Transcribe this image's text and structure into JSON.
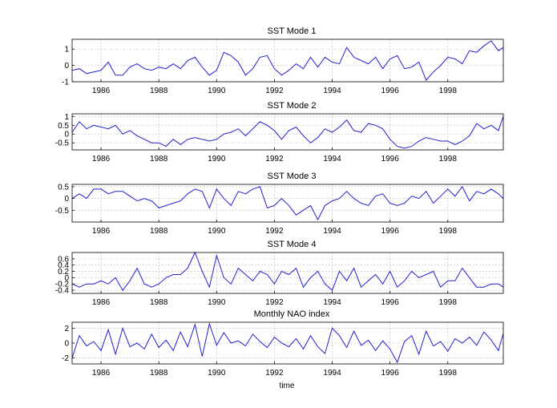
{
  "figure": {
    "xlabel": "time"
  },
  "chart_data": [
    {
      "type": "line",
      "title": "SST Mode 1",
      "xlim": [
        1985.0,
        1999.92
      ],
      "ylim": [
        -1,
        1.6
      ],
      "xticks": [
        1986,
        1988,
        1990,
        1992,
        1994,
        1996,
        1998
      ],
      "xtick_labels": [
        "1986",
        "1988",
        "1990",
        "1992",
        "1994",
        "1996",
        "1998"
      ],
      "yticks": [
        -1,
        0,
        1
      ],
      "ytick_labels": [
        "-1",
        "0",
        "1"
      ],
      "grid": true,
      "series": [
        {
          "color": "#2222cc",
          "x": [
            1985.0,
            1985.25,
            1985.5,
            1985.75,
            1986.0,
            1986.25,
            1986.5,
            1986.75,
            1987.0,
            1987.25,
            1987.5,
            1987.75,
            1988.0,
            1988.25,
            1988.5,
            1988.75,
            1989.0,
            1989.25,
            1989.5,
            1989.75,
            1990.0,
            1990.25,
            1990.5,
            1990.75,
            1991.0,
            1991.25,
            1991.5,
            1991.75,
            1992.0,
            1992.25,
            1992.5,
            1992.75,
            1993.0,
            1993.25,
            1993.5,
            1993.75,
            1994.0,
            1994.25,
            1994.5,
            1994.75,
            1995.0,
            1995.25,
            1995.5,
            1995.75,
            1996.0,
            1996.25,
            1996.5,
            1996.75,
            1997.0,
            1997.25,
            1997.5,
            1997.75,
            1998.0,
            1998.25,
            1998.5,
            1998.75,
            1999.0,
            1999.25,
            1999.5,
            1999.75,
            1999.92
          ],
          "y": [
            -0.3,
            -0.2,
            -0.5,
            -0.4,
            -0.3,
            0.2,
            -0.6,
            -0.6,
            -0.1,
            0.1,
            -0.2,
            -0.3,
            -0.1,
            -0.2,
            0.1,
            -0.2,
            0.3,
            0.5,
            -0.1,
            -0.6,
            -0.3,
            0.8,
            0.6,
            0.2,
            -0.6,
            -0.2,
            0.5,
            0.6,
            -0.2,
            -0.6,
            -0.3,
            0.1,
            -0.2,
            0.5,
            -0.1,
            0.5,
            0.2,
            0.1,
            1.1,
            0.5,
            0.3,
            0.1,
            0.5,
            -0.2,
            0.4,
            0.6,
            -0.2,
            -0.1,
            0.2,
            -0.9,
            -0.4,
            0.0,
            0.5,
            0.4,
            0.1,
            0.9,
            0.8,
            1.2,
            1.5,
            0.9,
            1.1
          ]
        }
      ]
    },
    {
      "type": "line",
      "title": "SST Mode 2",
      "xlim": [
        1985.0,
        1999.92
      ],
      "ylim": [
        -0.9,
        1.15
      ],
      "xticks": [
        1986,
        1988,
        1990,
        1992,
        1994,
        1996,
        1998
      ],
      "xtick_labels": [
        "1986",
        "1988",
        "1990",
        "1992",
        "1994",
        "1996",
        "1998"
      ],
      "yticks": [
        -0.5,
        0,
        0.5,
        1
      ],
      "ytick_labels": [
        "-0.5",
        "0",
        "0.5",
        "1"
      ],
      "grid": true,
      "series": [
        {
          "color": "#2222cc",
          "x": [
            1985.0,
            1985.25,
            1985.5,
            1985.75,
            1986.0,
            1986.25,
            1986.5,
            1986.75,
            1987.0,
            1987.25,
            1987.5,
            1987.75,
            1988.0,
            1988.25,
            1988.5,
            1988.75,
            1989.0,
            1989.25,
            1989.5,
            1989.75,
            1990.0,
            1990.25,
            1990.5,
            1990.75,
            1991.0,
            1991.25,
            1991.5,
            1991.75,
            1992.0,
            1992.25,
            1992.5,
            1992.75,
            1993.0,
            1993.25,
            1993.5,
            1993.75,
            1994.0,
            1994.25,
            1994.5,
            1994.75,
            1995.0,
            1995.25,
            1995.5,
            1995.75,
            1996.0,
            1996.25,
            1996.5,
            1996.75,
            1997.0,
            1997.25,
            1997.5,
            1997.75,
            1998.0,
            1998.25,
            1998.5,
            1998.75,
            1999.0,
            1999.25,
            1999.5,
            1999.75,
            1999.92
          ],
          "y": [
            0.1,
            0.7,
            0.3,
            0.5,
            0.4,
            0.3,
            0.5,
            0.0,
            0.2,
            -0.1,
            -0.3,
            -0.5,
            -0.5,
            -0.7,
            -0.3,
            -0.6,
            -0.3,
            -0.2,
            -0.3,
            -0.4,
            -0.3,
            0.0,
            0.1,
            0.3,
            -0.1,
            0.3,
            0.7,
            0.5,
            0.2,
            -0.3,
            0.2,
            0.4,
            -0.1,
            -0.5,
            -0.2,
            0.3,
            0.1,
            0.4,
            0.8,
            0.2,
            0.1,
            0.6,
            0.5,
            0.3,
            -0.3,
            -0.7,
            -0.8,
            -0.7,
            -0.4,
            -0.2,
            -0.3,
            -0.4,
            -0.4,
            -0.6,
            -0.4,
            -0.1,
            0.6,
            0.3,
            0.5,
            0.2,
            1.0
          ]
        }
      ]
    },
    {
      "type": "line",
      "title": "SST Mode 3",
      "xlim": [
        1985.0,
        1999.92
      ],
      "ylim": [
        -1.0,
        0.6
      ],
      "xticks": [
        1986,
        1988,
        1990,
        1992,
        1994,
        1996,
        1998
      ],
      "xtick_labels": [
        "1986",
        "1988",
        "1990",
        "1992",
        "1994",
        "1996",
        "1998"
      ],
      "yticks": [
        -0.5,
        0,
        0.5
      ],
      "ytick_labels": [
        "-0.5",
        "0",
        "0.5"
      ],
      "grid": true,
      "series": [
        {
          "color": "#2222cc",
          "x": [
            1985.0,
            1985.25,
            1985.5,
            1985.75,
            1986.0,
            1986.25,
            1986.5,
            1986.75,
            1987.0,
            1987.25,
            1987.5,
            1987.75,
            1988.0,
            1988.25,
            1988.5,
            1988.75,
            1989.0,
            1989.25,
            1989.5,
            1989.75,
            1990.0,
            1990.25,
            1990.5,
            1990.75,
            1991.0,
            1991.25,
            1991.5,
            1991.75,
            1992.0,
            1992.25,
            1992.5,
            1992.75,
            1993.0,
            1993.25,
            1993.5,
            1993.75,
            1994.0,
            1994.25,
            1994.5,
            1994.75,
            1995.0,
            1995.25,
            1995.5,
            1995.75,
            1996.0,
            1996.25,
            1996.5,
            1996.75,
            1997.0,
            1997.25,
            1997.5,
            1997.75,
            1998.0,
            1998.25,
            1998.5,
            1998.75,
            1999.0,
            1999.25,
            1999.5,
            1999.75,
            1999.92
          ],
          "y": [
            0.0,
            0.2,
            0.0,
            0.4,
            0.4,
            0.2,
            0.3,
            0.3,
            0.1,
            -0.1,
            0.0,
            -0.1,
            -0.4,
            -0.3,
            -0.2,
            -0.1,
            0.2,
            0.4,
            0.3,
            -0.4,
            0.4,
            0.0,
            -0.3,
            0.3,
            0.2,
            0.4,
            0.5,
            -0.4,
            -0.3,
            0.0,
            -0.3,
            -0.7,
            -0.5,
            -0.3,
            -0.9,
            -0.3,
            -0.1,
            0.0,
            0.3,
            0.0,
            -0.2,
            -0.3,
            0.1,
            0.2,
            -0.2,
            -0.3,
            -0.2,
            0.1,
            0.0,
            0.3,
            -0.2,
            0.1,
            0.4,
            0.1,
            0.5,
            -0.1,
            0.3,
            0.2,
            0.4,
            0.2,
            0.0
          ]
        }
      ]
    },
    {
      "type": "line",
      "title": "SST Mode 4",
      "xlim": [
        1985.0,
        1999.92
      ],
      "ylim": [
        -0.5,
        0.8
      ],
      "xticks": [
        1986,
        1988,
        1990,
        1992,
        1994,
        1996,
        1998
      ],
      "xtick_labels": [
        "1986",
        "1988",
        "1990",
        "1992",
        "1994",
        "1996",
        "1998"
      ],
      "yticks": [
        -0.4,
        -0.2,
        0,
        0.2,
        0.4,
        0.6
      ],
      "ytick_labels": [
        "-0.4",
        "-0.2",
        "0",
        "0.2",
        "0.4",
        "0.6"
      ],
      "grid": true,
      "series": [
        {
          "color": "#2222cc",
          "x": [
            1985.0,
            1985.25,
            1985.5,
            1985.75,
            1986.0,
            1986.25,
            1986.5,
            1986.75,
            1987.0,
            1987.25,
            1987.5,
            1987.75,
            1988.0,
            1988.25,
            1988.5,
            1988.75,
            1989.0,
            1989.25,
            1989.5,
            1989.75,
            1990.0,
            1990.25,
            1990.5,
            1990.75,
            1991.0,
            1991.25,
            1991.5,
            1991.75,
            1992.0,
            1992.25,
            1992.5,
            1992.75,
            1993.0,
            1993.25,
            1993.5,
            1993.75,
            1994.0,
            1994.25,
            1994.5,
            1994.75,
            1995.0,
            1995.25,
            1995.5,
            1995.75,
            1996.0,
            1996.25,
            1996.5,
            1996.75,
            1997.0,
            1997.25,
            1997.5,
            1997.75,
            1998.0,
            1998.25,
            1998.5,
            1998.75,
            1999.0,
            1999.25,
            1999.5,
            1999.75,
            1999.92
          ],
          "y": [
            -0.2,
            -0.3,
            -0.2,
            -0.2,
            -0.1,
            -0.2,
            0.0,
            -0.4,
            -0.1,
            0.3,
            -0.2,
            -0.3,
            -0.2,
            0.0,
            0.1,
            0.1,
            0.3,
            0.8,
            0.2,
            -0.3,
            0.7,
            0.0,
            -0.2,
            0.3,
            0.1,
            -0.1,
            0.2,
            0.1,
            -0.2,
            0.2,
            0.1,
            0.3,
            -0.3,
            0.0,
            0.2,
            -0.2,
            -0.4,
            0.2,
            -0.1,
            0.3,
            -0.3,
            -0.1,
            0.1,
            -0.2,
            0.2,
            -0.3,
            -0.1,
            0.2,
            0.0,
            0.1,
            0.2,
            -0.3,
            -0.1,
            -0.1,
            0.3,
            0.0,
            -0.3,
            -0.3,
            -0.2,
            -0.2,
            -0.3
          ]
        }
      ]
    },
    {
      "type": "line",
      "title": "Monthly NAO index",
      "xlim": [
        1985.0,
        1999.92
      ],
      "ylim": [
        -2.8,
        2.8
      ],
      "xticks": [
        1986,
        1988,
        1990,
        1992,
        1994,
        1996,
        1998
      ],
      "xtick_labels": [
        "1986",
        "1988",
        "1990",
        "1992",
        "1994",
        "1996",
        "1998"
      ],
      "yticks": [
        -2,
        0,
        2
      ],
      "ytick_labels": [
        "-2",
        "0",
        "2"
      ],
      "grid": true,
      "series": [
        {
          "color": "#2222cc",
          "x": [
            1985.0,
            1985.25,
            1985.5,
            1985.75,
            1986.0,
            1986.25,
            1986.5,
            1986.75,
            1987.0,
            1987.25,
            1987.5,
            1987.75,
            1988.0,
            1988.25,
            1988.5,
            1988.75,
            1989.0,
            1989.25,
            1989.5,
            1989.75,
            1990.0,
            1990.25,
            1990.5,
            1990.75,
            1991.0,
            1991.25,
            1991.5,
            1991.75,
            1992.0,
            1992.25,
            1992.5,
            1992.75,
            1993.0,
            1993.25,
            1993.5,
            1993.75,
            1994.0,
            1994.25,
            1994.5,
            1994.75,
            1995.0,
            1995.25,
            1995.5,
            1995.75,
            1996.0,
            1996.25,
            1996.5,
            1996.75,
            1997.0,
            1997.25,
            1997.5,
            1997.75,
            1998.0,
            1998.25,
            1998.5,
            1998.75,
            1999.0,
            1999.25,
            1999.5,
            1999.75,
            1999.92
          ],
          "y": [
            -2.0,
            1.0,
            -0.4,
            0.2,
            -1.0,
            1.8,
            -1.5,
            2.0,
            -0.5,
            0.0,
            -0.8,
            1.2,
            -0.6,
            0.4,
            -1.0,
            1.5,
            -0.5,
            2.5,
            -1.8,
            2.6,
            -0.3,
            1.4,
            0.0,
            0.3,
            -0.4,
            1.2,
            0.2,
            -0.6,
            0.8,
            0.0,
            -0.5,
            0.6,
            -0.8,
            1.0,
            -0.5,
            -1.4,
            2.0,
            1.0,
            -0.6,
            1.6,
            -0.3,
            0.4,
            -1.0,
            0.3,
            -0.8,
            -2.6,
            0.2,
            1.0,
            -1.5,
            1.6,
            -0.4,
            0.2,
            -1.1,
            0.6,
            0.0,
            0.8,
            -0.3,
            1.5,
            0.4,
            -1.0,
            1.3
          ]
        }
      ]
    }
  ]
}
